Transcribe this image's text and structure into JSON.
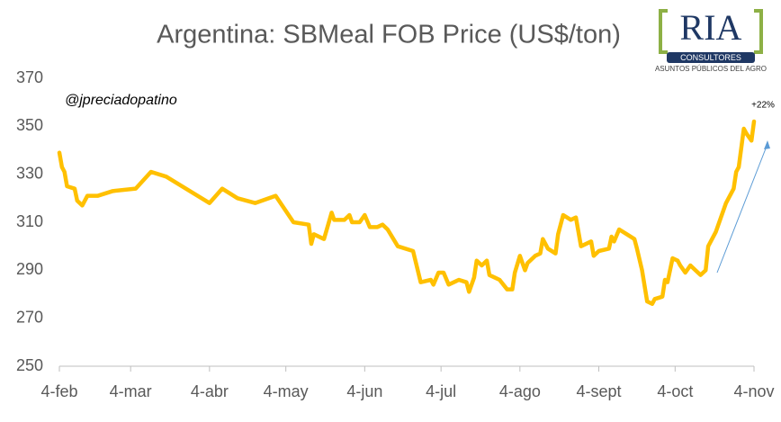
{
  "chart_data": {
    "type": "line",
    "title": "Argentina: SBMeal FOB Price (US$/ton)",
    "annotations": [
      "@jpreciadopatino",
      "+22%"
    ],
    "logo": {
      "name": "RIA",
      "tagline": "CONSULTORES",
      "subtitle": "ASUNTOS PÚBLICOS DEL AGRO"
    },
    "x": [
      0,
      1,
      2,
      3,
      6,
      7,
      9,
      11,
      15,
      21,
      30,
      36,
      42,
      59,
      64,
      70,
      77,
      85,
      92,
      98,
      99,
      100,
      104,
      107,
      108,
      112,
      114,
      115,
      118,
      120,
      122,
      125,
      127,
      129,
      133,
      139,
      142,
      146,
      147,
      149,
      151,
      153,
      157,
      160,
      161,
      163,
      164,
      166,
      168,
      169,
      171,
      173,
      176,
      178,
      179,
      181,
      183,
      184,
      187,
      189,
      190,
      192,
      195,
      196,
      198,
      201,
      203,
      205,
      209,
      210,
      212,
      216,
      217,
      218,
      220,
      223,
      226,
      227,
      229,
      231,
      233,
      234,
      237,
      238,
      239,
      241,
      243,
      244,
      246,
      248,
      250,
      252,
      254,
      255,
      258,
      262,
      265,
      266,
      267,
      269,
      270,
      272,
      273
    ],
    "series": [
      {
        "name": "SBMeal FOB",
        "color": "#ffc000",
        "values": [
          339,
          333,
          331,
          325,
          324,
          319,
          317,
          321,
          321,
          323,
          324,
          331,
          329,
          318,
          324,
          320,
          318,
          321,
          310,
          309,
          301,
          305,
          303,
          314,
          311,
          311,
          313,
          310,
          310,
          313,
          308,
          308,
          309,
          307,
          300,
          298,
          285,
          286,
          284,
          289,
          289,
          284,
          286,
          285,
          281,
          287,
          294,
          292,
          294,
          288,
          287,
          286,
          282,
          282,
          289,
          296,
          290,
          293,
          296,
          297,
          303,
          299,
          297,
          305,
          313,
          311,
          312,
          300,
          302,
          296,
          298,
          299,
          304,
          302,
          307,
          305,
          303,
          299,
          290,
          277,
          276,
          278,
          279,
          286,
          285,
          295,
          294,
          292,
          289,
          292,
          290,
          288,
          290,
          300,
          306,
          318,
          324,
          331,
          333,
          349,
          347,
          344,
          352
        ]
      }
    ],
    "xlim": [
      0,
      273
    ],
    "xticks": [
      {
        "value": 0,
        "label": "4-feb"
      },
      {
        "value": 28,
        "label": "4-mar"
      },
      {
        "value": 59,
        "label": "4-abr"
      },
      {
        "value": 89,
        "label": "4-may"
      },
      {
        "value": 120,
        "label": "4-jun"
      },
      {
        "value": 150,
        "label": "4-jul"
      },
      {
        "value": 181,
        "label": "4-ago"
      },
      {
        "value": 212,
        "label": "4-sept"
      },
      {
        "value": 242,
        "label": "4-oct"
      },
      {
        "value": 273,
        "label": "4-nov"
      }
    ],
    "ylim": [
      250,
      370
    ],
    "yticks": [
      250,
      270,
      290,
      310,
      330,
      350,
      370
    ],
    "grid": false
  }
}
